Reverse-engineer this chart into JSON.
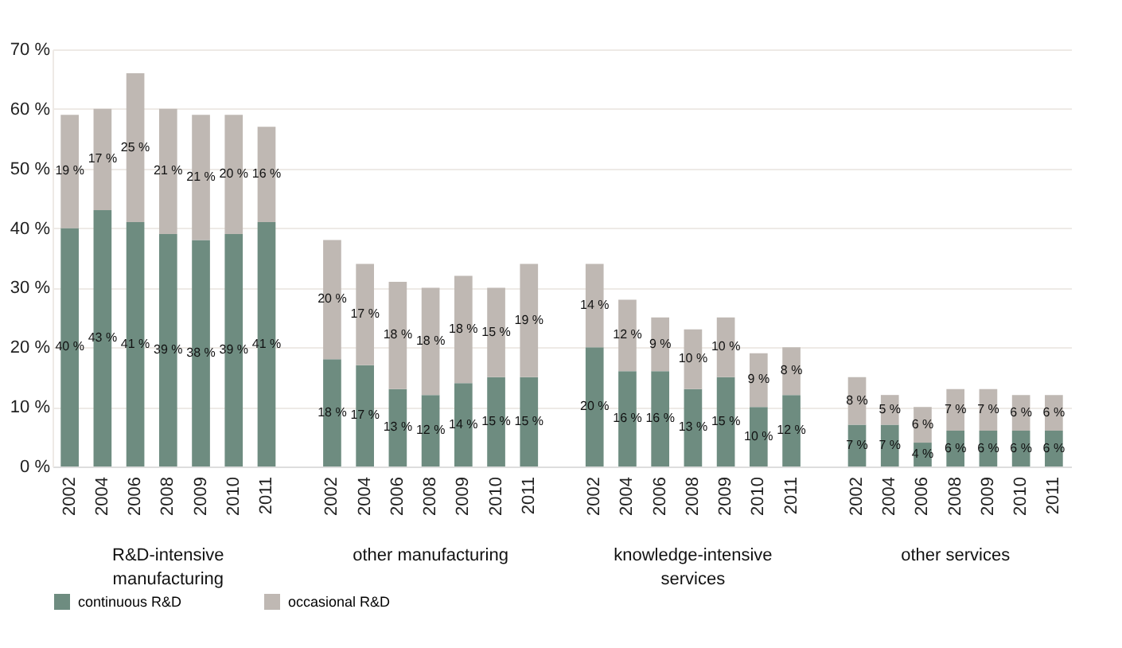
{
  "chart_data": {
    "type": "bar",
    "stacked": true,
    "categories": [
      "2002",
      "2004",
      "2006",
      "2008",
      "2009",
      "2010",
      "2011",
      null,
      "2002",
      "2004",
      "2006",
      "2008",
      "2009",
      "2010",
      "2011",
      null,
      "2002",
      "2004",
      "2006",
      "2008",
      "2009",
      "2010",
      "2011",
      null,
      "2002",
      "2004",
      "2006",
      "2008",
      "2009",
      "2010",
      "2011"
    ],
    "series": [
      {
        "name": "continuous R&D",
        "color": "#6e8c80",
        "values": [
          40,
          43,
          41,
          39,
          38,
          39,
          41,
          null,
          18,
          17,
          13,
          12,
          14,
          15,
          15,
          null,
          20,
          16,
          16,
          13,
          15,
          10,
          12,
          null,
          7,
          7,
          4,
          6,
          6,
          6,
          6
        ],
        "value_labels": [
          "40 %",
          "43 %",
          "41 %",
          "39 %",
          "38 %",
          "39 %",
          "41 %",
          null,
          "18 %",
          "17 %",
          "13 %",
          "12 %",
          "14 %",
          "15 %",
          "15 %",
          null,
          "20 %",
          "16 %",
          "16 %",
          "13 %",
          "15 %",
          "10 %",
          "12 %",
          null,
          "7 %",
          "7 %",
          "4 %",
          "6 %",
          "6 %",
          "6 %",
          "6 %"
        ]
      },
      {
        "name": "occasional R&D",
        "color": "#bfb8b3",
        "values": [
          19,
          17,
          25,
          21,
          21,
          20,
          16,
          null,
          20,
          17,
          18,
          18,
          18,
          15,
          19,
          null,
          14,
          12,
          9,
          10,
          10,
          9,
          8,
          null,
          8,
          5,
          6,
          7,
          7,
          6,
          6
        ],
        "value_labels": [
          "19 %",
          "17 %",
          "25 %",
          "21 %",
          "21 %",
          "20 %",
          "16 %",
          null,
          "20 %",
          "17 %",
          "18 %",
          "18 %",
          "18 %",
          "15 %",
          "19 %",
          null,
          "14 %",
          "12 %",
          "9 %",
          "10 %",
          "10 %",
          "9 %",
          "8 %",
          null,
          "8 %",
          "5 %",
          "6 %",
          "7 %",
          "7 %",
          "6 %",
          "6 %"
        ]
      }
    ],
    "ylim": [
      0,
      70
    ],
    "yticks": [
      {
        "value": 0,
        "label": "0 %"
      },
      {
        "value": 10,
        "label": "10 %"
      },
      {
        "value": 20,
        "label": "20 %"
      },
      {
        "value": 30,
        "label": "30 %"
      },
      {
        "value": 40,
        "label": "40 %"
      },
      {
        "value": 50,
        "label": "50 %"
      },
      {
        "value": 60,
        "label": "60 %"
      },
      {
        "value": 70,
        "label": "70 %"
      }
    ],
    "annotations": [
      "R&D-intensive manufacturing",
      "other manufacturing",
      "knowledge-intensive services",
      "other services"
    ],
    "grid": "y",
    "legend": "bottom"
  }
}
